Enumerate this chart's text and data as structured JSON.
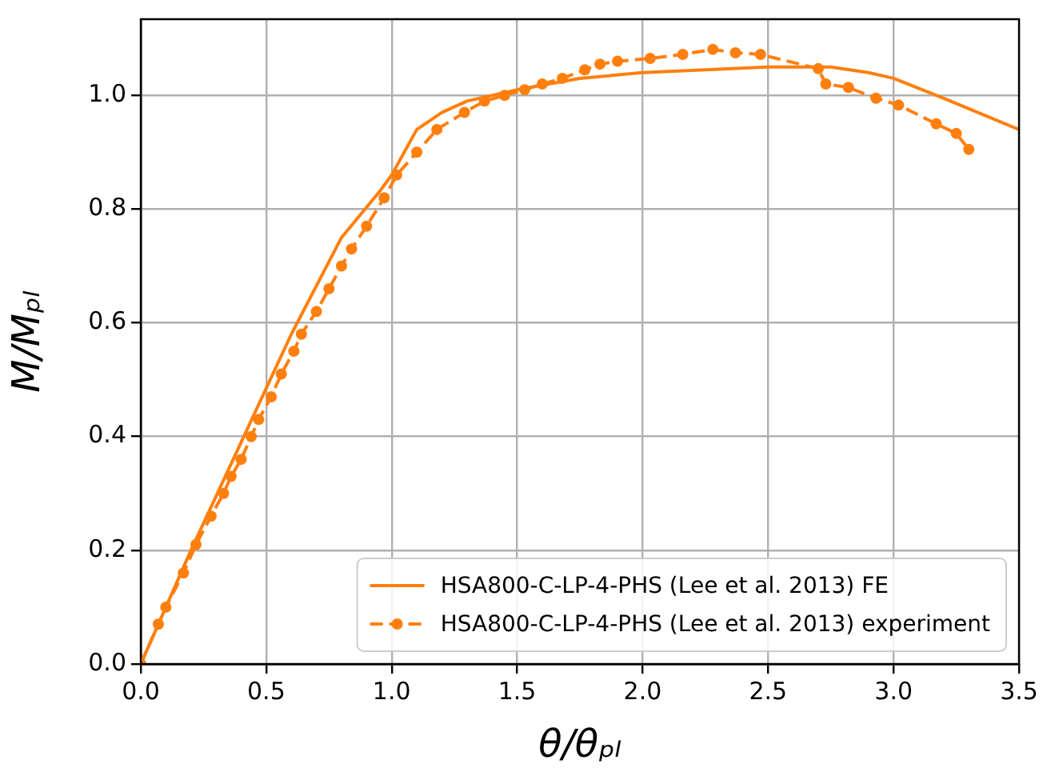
{
  "chart_data": {
    "type": "line",
    "xlabel": "θ/θₚₗ",
    "ylabel": "M/Mₚₗ",
    "xlim": [
      0,
      3.5
    ],
    "ylim": [
      0,
      1.134
    ],
    "xticks": [
      {
        "value": 0,
        "label": "0.0"
      },
      {
        "value": 0.5,
        "label": "0.5"
      },
      {
        "value": 1,
        "label": "1.0"
      },
      {
        "value": 1.5,
        "label": "1.5"
      },
      {
        "value": 2,
        "label": "2.0"
      },
      {
        "value": 2.5,
        "label": "2.5"
      },
      {
        "value": 3,
        "label": "3.0"
      },
      {
        "value": 3.5,
        "label": "3.5"
      }
    ],
    "yticks": [
      {
        "value": 0,
        "label": "0.0"
      },
      {
        "value": 0.2,
        "label": "0.2"
      },
      {
        "value": 0.4,
        "label": "0.4"
      },
      {
        "value": 0.6,
        "label": "0.6"
      },
      {
        "value": 0.8,
        "label": "0.8"
      },
      {
        "value": 1,
        "label": "1.0"
      }
    ],
    "grid": true,
    "legend": "bottom right",
    "series": [
      {
        "name": "HSA800-C-LP-4-PHS (Lee et al. 2013) FE",
        "color": "#ff7f0e",
        "marker": "none",
        "line_style": "solid",
        "x": [
          0,
          0.2,
          0.4,
          0.6,
          0.8,
          0.95,
          1.0,
          1.05,
          1.1,
          1.2,
          1.3,
          1.5,
          1.75,
          2.0,
          2.25,
          2.5,
          2.75,
          2.9,
          3.0,
          3.2,
          3.5
        ],
        "values": [
          0,
          0.2,
          0.39,
          0.58,
          0.75,
          0.83,
          0.86,
          0.9,
          0.94,
          0.97,
          0.99,
          1.01,
          1.03,
          1.04,
          1.045,
          1.05,
          1.05,
          1.04,
          1.03,
          0.995,
          0.94
        ]
      },
      {
        "name": "HSA800-C-LP-4-PHS (Lee et al. 2013) experiment",
        "color": "#ff7f0e",
        "marker": "circle",
        "line_style": "dashed",
        "x": [
          0,
          0.07,
          0.1,
          0.17,
          0.22,
          0.28,
          0.33,
          0.36,
          0.4,
          0.44,
          0.47,
          0.52,
          0.56,
          0.61,
          0.64,
          0.7,
          0.75,
          0.8,
          0.84,
          0.9,
          0.97,
          1.02,
          1.1,
          1.18,
          1.29,
          1.37,
          1.45,
          1.53,
          1.6,
          1.68,
          1.77,
          1.83,
          1.9,
          2.03,
          2.16,
          2.28,
          2.37,
          2.47,
          2.7,
          2.73,
          2.82,
          2.93,
          3.02,
          3.17,
          3.25,
          3.3
        ],
        "values": [
          0,
          0.07,
          0.1,
          0.16,
          0.21,
          0.26,
          0.3,
          0.33,
          0.36,
          0.4,
          0.43,
          0.47,
          0.51,
          0.55,
          0.58,
          0.62,
          0.66,
          0.7,
          0.73,
          0.77,
          0.82,
          0.86,
          0.9,
          0.94,
          0.97,
          0.99,
          1.0,
          1.01,
          1.02,
          1.03,
          1.045,
          1.055,
          1.06,
          1.065,
          1.072,
          1.081,
          1.075,
          1.072,
          1.047,
          1.02,
          1.014,
          0.995,
          0.983,
          0.95,
          0.933,
          0.905
        ]
      }
    ]
  }
}
